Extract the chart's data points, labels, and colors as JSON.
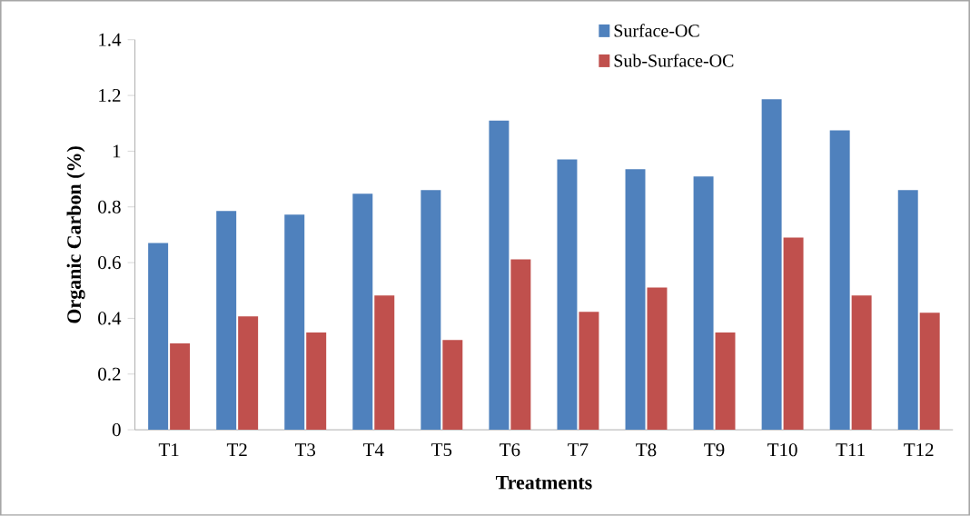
{
  "chart_data": {
    "type": "bar",
    "xlabel": "Treatments",
    "ylabel": "Organic  Carbon  (%)",
    "categories": [
      "T1",
      "T2",
      "T3",
      "T4",
      "T5",
      "T6",
      "T7",
      "T8",
      "T9",
      "T10",
      "T11",
      "T12"
    ],
    "series": [
      {
        "name": "Surface-OC",
        "color": "#4f81bd",
        "values": [
          0.67,
          0.785,
          0.772,
          0.847,
          0.86,
          1.11,
          0.97,
          0.935,
          0.909,
          1.186,
          1.075,
          0.86
        ]
      },
      {
        "name": "Sub-Surface-OC",
        "color": "#c0504d",
        "values": [
          0.31,
          0.407,
          0.349,
          0.482,
          0.322,
          0.612,
          0.423,
          0.511,
          0.349,
          0.69,
          0.482,
          0.42
        ]
      }
    ],
    "ylim": [
      0,
      1.4
    ],
    "yticks": [
      0,
      0.2,
      0.4,
      0.6,
      0.8,
      1,
      1.2,
      1.4
    ],
    "legend": "top right"
  }
}
